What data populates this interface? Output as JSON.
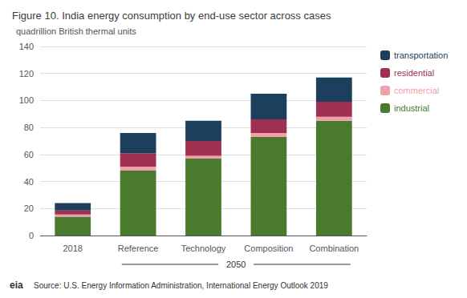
{
  "chart_data": {
    "type": "bar",
    "stacked": true,
    "title": "Figure 10. India energy consumption by end-use sector across cases",
    "ylabel": "quadrillion British thermal units",
    "categories": [
      "2018",
      "Reference",
      "Technology",
      "Composition",
      "Combination"
    ],
    "series": [
      {
        "name": "industrial",
        "color": "#4a7a2e",
        "values": [
          14,
          48,
          57,
          73,
          85
        ]
      },
      {
        "name": "commercial",
        "color": "#f0a0a8",
        "values": [
          1.5,
          3,
          2,
          3,
          3
        ]
      },
      {
        "name": "residential",
        "color": "#a03050",
        "values": [
          3,
          10,
          11,
          10,
          11
        ]
      },
      {
        "name": "transportation",
        "color": "#1c3f5e",
        "values": [
          5.5,
          15,
          15,
          19,
          18
        ]
      }
    ],
    "ylim": [
      0,
      140
    ],
    "yticks": [
      0,
      20,
      40,
      60,
      80,
      100,
      120,
      140
    ],
    "grid": true,
    "legend": "right",
    "annotations": [
      "2050",
      "Source: U.S. Energy Information Administration, International Energy Outlook 2019",
      "eia"
    ]
  }
}
